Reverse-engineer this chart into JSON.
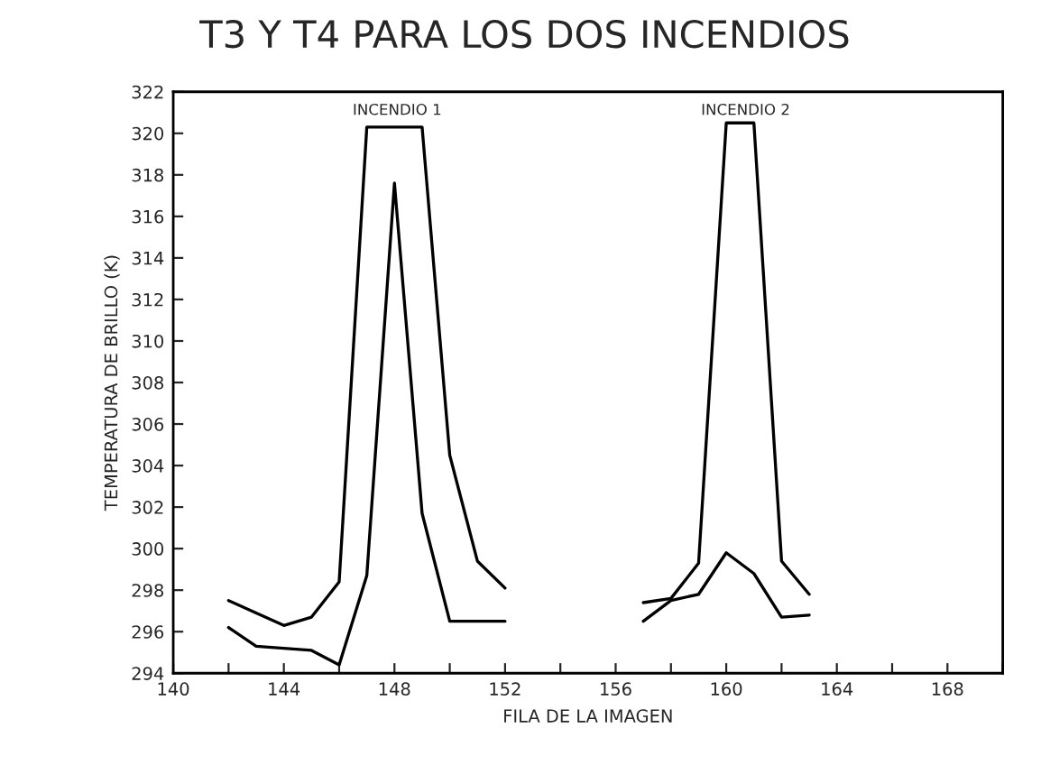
{
  "chart_data": {
    "type": "line",
    "title": "T3 Y T4 PARA LOS DOS INCENDIOS",
    "xlabel": "FILA DE LA IMAGEN",
    "ylabel": "TEMPERATURA DE BRILLO (K)",
    "x": [
      142,
      143,
      144,
      145,
      146,
      147,
      148,
      149,
      150,
      151,
      152,
      154,
      157,
      158,
      159,
      160,
      161,
      162,
      163
    ],
    "series": [
      {
        "color": "#000000",
        "values": [
          297.5,
          296.9,
          296.3,
          296.7,
          298.4,
          320.3,
          320.3,
          320.3,
          304.5,
          299.4,
          298.1,
          null,
          297.4,
          297.6,
          299.3,
          320.5,
          320.5,
          299.4,
          297.8
        ]
      },
      {
        "color": "#000000",
        "values": [
          296.2,
          295.3,
          295.2,
          295.1,
          294.4,
          298.7,
          317.6,
          301.7,
          296.5,
          296.5,
          296.5,
          null,
          296.5,
          297.5,
          297.8,
          299.8,
          298.8,
          296.7,
          296.8
        ]
      }
    ],
    "xlim": [
      140,
      170
    ],
    "ylim": [
      294,
      322
    ],
    "xticks": [
      140,
      {
        "value": 142,
        "label": null
      },
      144,
      {
        "value": 146,
        "label": null
      },
      148,
      {
        "value": 150,
        "label": null
      },
      152,
      {
        "value": 154,
        "label": null
      },
      156,
      {
        "value": 158,
        "label": null
      },
      160,
      {
        "value": 162,
        "label": null
      },
      164,
      {
        "value": 166,
        "label": null
      },
      168,
      {
        "value": 170,
        "label": null
      }
    ],
    "yticks": [
      294,
      296,
      298,
      300,
      302,
      304,
      306,
      308,
      310,
      312,
      314,
      316,
      318,
      320,
      322
    ],
    "annotations": [
      "INCENDIO 1",
      "INCENDIO 2"
    ],
    "grid": false,
    "marker": "none",
    "line_style": "solid"
  }
}
